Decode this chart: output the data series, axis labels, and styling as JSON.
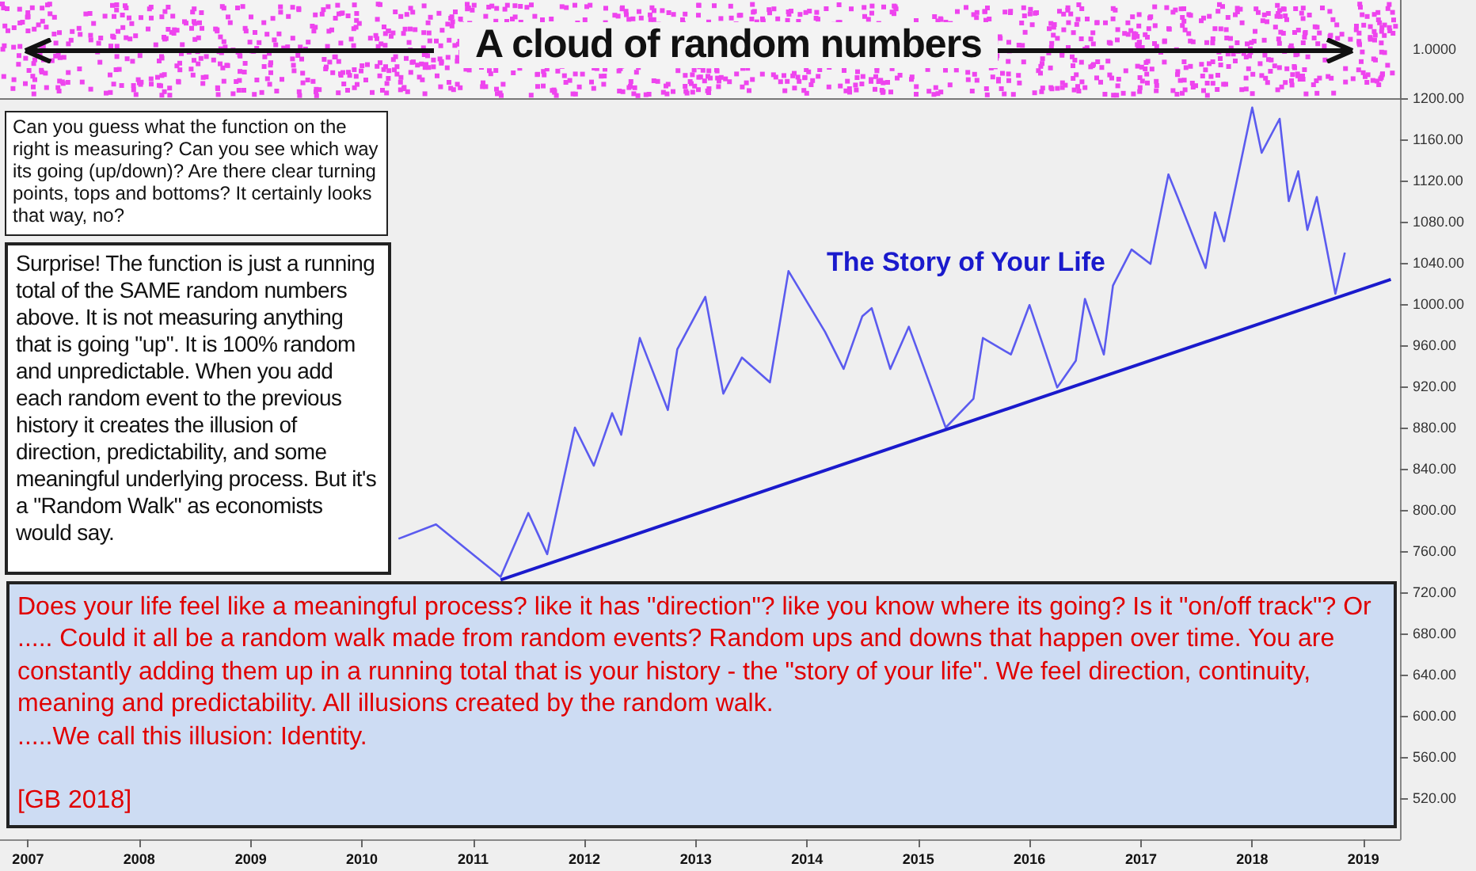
{
  "chart_data": {
    "type": "line",
    "title": "A cloud of random numbers",
    "annotations": [
      "Can you guess what the function on the right is measuring? Can you see which way its going (up/down)? Are there clear turning points, tops and bottoms? It certainly looks that way, no?",
      "Surprise! The function is just a running total of the SAME random numbers above. It is not measuring anything that is going \"up\". It is 100% random and unpredictable. When you add each random event to the previous history it creates the illusion of direction, predictability, and some meaningful underlying process. But it's a \"Random Walk\" as economists would say.",
      "The Story of Your Life",
      "Does your life feel like a meaningful process? like it has \"direction\"? like you know where its going? Is it \"on/off track\"? Or ..... Could it all be a random walk made from random events? Random ups and downs that happen over time. You are constantly adding them up in a running total that is your history -  the \"story of your life\". We feel direction, continuity, meaning and predictability. All illusions created by the random walk.\n.....We call this illusion: Identity.",
      "[GB 2018]",
      "1.0000"
    ],
    "x": [
      "2010-05",
      "2010-09",
      "2010-12",
      "2011-04",
      "2011-07",
      "2011-09",
      "2011-12",
      "2012-02",
      "2012-04",
      "2012-05",
      "2012-07",
      "2012-10",
      "2012-11",
      "2013-02",
      "2013-04",
      "2013-06",
      "2013-09",
      "2013-11",
      "2014-03",
      "2014-05",
      "2014-07",
      "2014-08",
      "2014-10",
      "2014-12",
      "2015-04",
      "2015-07",
      "2015-08",
      "2015-11",
      "2016-01",
      "2016-04",
      "2016-06",
      "2016-07",
      "2016-09",
      "2016-10",
      "2016-12",
      "2017-02",
      "2017-04",
      "2017-05",
      "2017-08",
      "2017-09",
      "2017-10",
      "2018-01",
      "2018-02",
      "2018-04",
      "2018-05",
      "2018-06",
      "2018-07",
      "2018-08",
      "2018-10",
      "2018-11"
    ],
    "series": [
      {
        "color": "#5b5bef",
        "values": [
          772,
          786,
          764,
          735,
          797,
          757,
          880,
          843,
          894,
          873,
          967,
          897,
          956,
          1007,
          913,
          948,
          924,
          1032,
          973,
          937,
          988,
          996,
          937,
          978,
          880,
          908,
          967,
          951,
          999,
          919,
          945,
          1005,
          951,
          1018,
          1053,
          1039,
          1126,
          1104,
          1035,
          1089,
          1061,
          1191,
          1147,
          1180,
          1100,
          1129,
          1072,
          1104,
          1010,
          1050
        ]
      },
      {
        "type": "line",
        "color": "#1a1acc",
        "x": [
          "2011-04",
          "2019-04"
        ],
        "values": [
          732,
          1024
        ]
      }
    ],
    "xlim": [
      "2006-10",
      "2019-05"
    ],
    "xticks": [
      "2007",
      "2008",
      "2009",
      "2010",
      "2011",
      "2012",
      "2013",
      "2014",
      "2015",
      "2016",
      "2017",
      "2018",
      "2019"
    ],
    "ylim": [
      480,
      1200
    ],
    "yticks": [
      {
        "value": 520,
        "label": "520.00"
      },
      {
        "value": 560,
        "label": "560.00"
      },
      {
        "value": 600,
        "label": "600.00"
      },
      {
        "value": 640,
        "label": "640.00"
      },
      {
        "value": 680,
        "label": "680.00"
      },
      {
        "value": 720,
        "label": "720.00"
      },
      {
        "value": 760,
        "label": "760.00"
      },
      {
        "value": 800,
        "label": "800.00"
      },
      {
        "value": 840,
        "label": "840.00"
      },
      {
        "value": 880,
        "label": "880.00"
      },
      {
        "value": 920,
        "label": "920.00"
      },
      {
        "value": 960,
        "label": "960.00"
      },
      {
        "value": 1000,
        "label": "1000.00"
      },
      {
        "value": 1040,
        "label": "1040.00"
      },
      {
        "value": 1080,
        "label": "1080.00"
      },
      {
        "value": 1120,
        "label": "1120.00"
      },
      {
        "value": 1160,
        "label": "1160.00"
      },
      {
        "value": 1200,
        "label": "1200.00"
      }
    ],
    "marker": "none"
  }
}
